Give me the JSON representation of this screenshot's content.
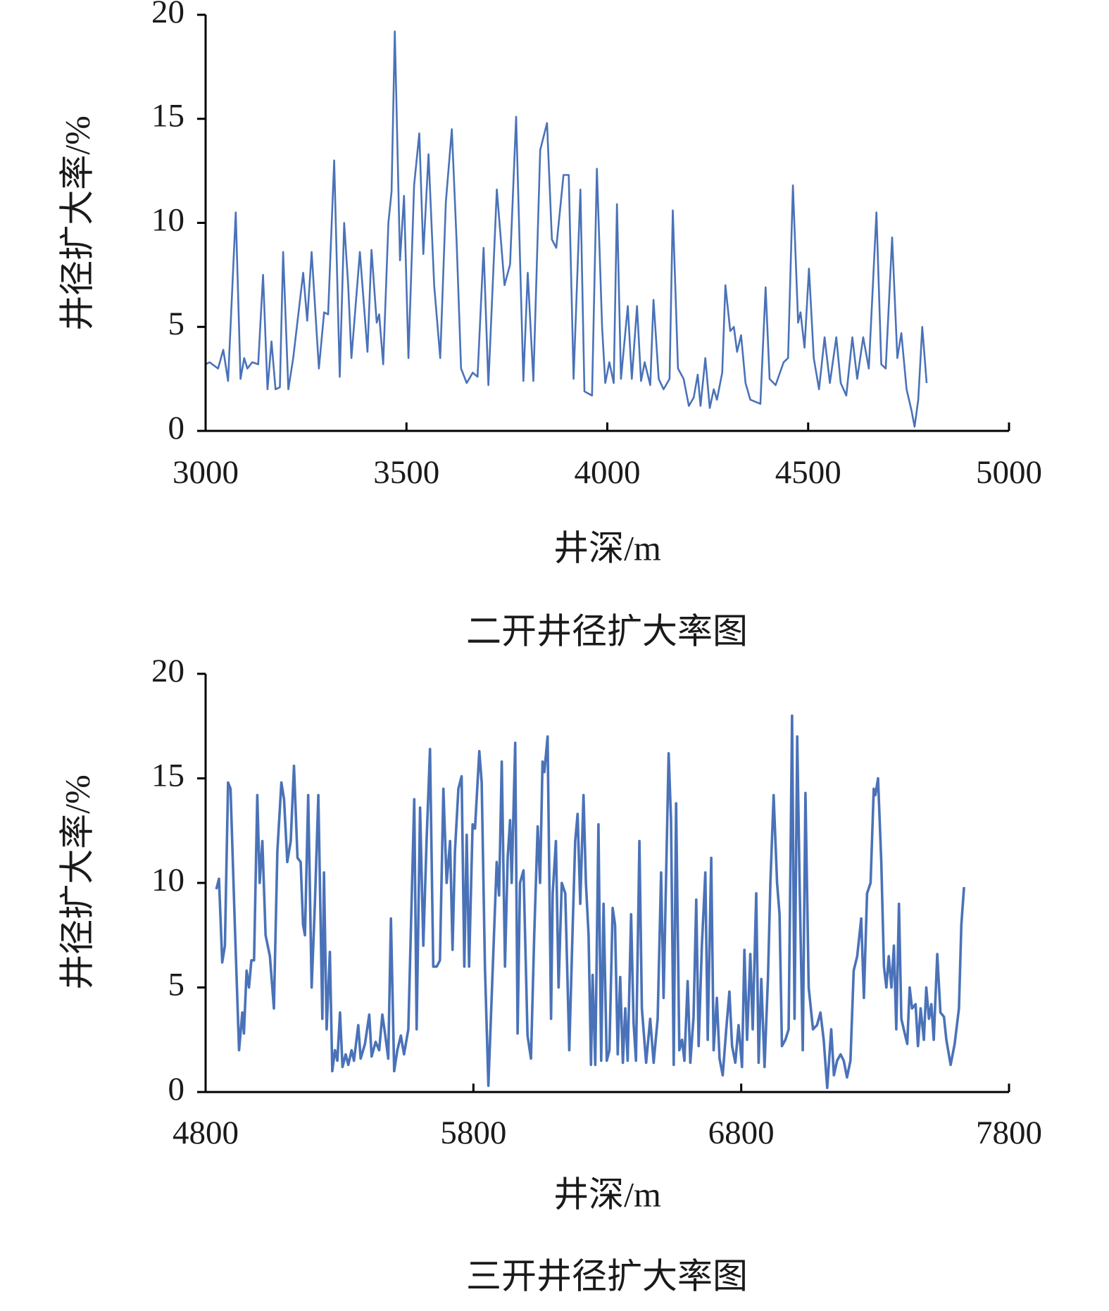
{
  "chart_data": [
    {
      "type": "line",
      "title": "二开井径扩大率图",
      "x_label": "井深/m",
      "y_label": "井径扩大率/%",
      "color": "#4a72b8",
      "xlim": [
        3000,
        5000
      ],
      "xticks": [
        3000,
        3500,
        4000,
        4500,
        5000
      ],
      "ylim": [
        0,
        20
      ],
      "yticks": [
        0,
        5,
        10,
        15,
        20
      ],
      "x": [
        3000,
        3010,
        3031,
        3044,
        3056,
        3075,
        3087,
        3096,
        3104,
        3116,
        3131,
        3143,
        3154,
        3164,
        3174,
        3185,
        3193,
        3206,
        3218,
        3243,
        3253,
        3264,
        3282,
        3295,
        3305,
        3320,
        3334,
        3345,
        3355,
        3363,
        3384,
        3403,
        3413,
        3426,
        3432,
        3442,
        3455,
        3463,
        3471,
        3484,
        3494,
        3505,
        3519,
        3532,
        3542,
        3555,
        3569,
        3584,
        3598,
        3613,
        3625,
        3636,
        3650,
        3665,
        3677,
        3692,
        3704,
        3725,
        3744,
        3758,
        3773,
        3791,
        3802,
        3816,
        3833,
        3850,
        3862,
        3873,
        3891,
        3904,
        3916,
        3933,
        3943,
        3962,
        3974,
        3987,
        3995,
        4005,
        4016,
        4024,
        4034,
        4051,
        4061,
        4074,
        4084,
        4093,
        4107,
        4115,
        4128,
        4140,
        4155,
        4163,
        4176,
        4190,
        4203,
        4215,
        4225,
        4232,
        4244,
        4255,
        4265,
        4273,
        4286,
        4294,
        4306,
        4315,
        4323,
        4333,
        4344,
        4356,
        4381,
        4394,
        4404,
        4419,
        4439,
        4450,
        4462,
        4475,
        4481,
        4491,
        4502,
        4514,
        4527,
        4541,
        4554,
        4570,
        4581,
        4595,
        4610,
        4622,
        4637,
        4651,
        4670,
        4682,
        4693,
        4709,
        4722,
        4732,
        4745,
        4757,
        4765,
        4774,
        4784,
        4795
      ],
      "values": [
        3.2,
        3.3,
        3.0,
        3.9,
        2.4,
        10.5,
        2.5,
        3.5,
        3.0,
        3.3,
        3.2,
        7.5,
        2.0,
        4.3,
        2.0,
        2.1,
        8.6,
        2.0,
        3.5,
        7.6,
        5.3,
        8.6,
        3.0,
        5.7,
        5.6,
        13.0,
        2.6,
        10.0,
        7.0,
        3.5,
        8.6,
        3.8,
        8.7,
        5.2,
        5.6,
        3.2,
        10.0,
        11.5,
        19.2,
        8.2,
        11.3,
        3.5,
        11.8,
        14.3,
        8.5,
        13.3,
        7.0,
        3.5,
        11.0,
        14.5,
        9.0,
        3.0,
        2.3,
        2.8,
        2.6,
        8.8,
        2.2,
        11.6,
        7.0,
        8.0,
        15.1,
        2.4,
        7.6,
        2.4,
        13.5,
        14.8,
        9.2,
        8.8,
        12.3,
        12.3,
        2.5,
        11.6,
        1.9,
        1.7,
        12.6,
        5.0,
        2.3,
        3.3,
        2.3,
        10.9,
        2.5,
        6.0,
        2.5,
        6.0,
        2.4,
        3.3,
        2.2,
        6.3,
        2.5,
        2.0,
        2.5,
        10.6,
        3.0,
        2.5,
        1.2,
        1.6,
        2.7,
        1.2,
        3.5,
        1.1,
        2.0,
        1.5,
        2.8,
        7.0,
        4.8,
        5.0,
        3.8,
        4.6,
        2.3,
        1.5,
        1.3,
        6.9,
        2.5,
        2.2,
        3.3,
        3.5,
        11.8,
        5.2,
        5.7,
        4.0,
        7.8,
        3.5,
        2.0,
        4.5,
        2.3,
        4.5,
        2.3,
        1.7,
        4.5,
        2.5,
        4.5,
        3.0,
        10.5,
        3.2,
        3.0,
        9.3,
        3.5,
        4.7,
        2.0,
        1.0,
        0.2,
        1.5,
        5.0,
        2.3
      ]
    },
    {
      "type": "line",
      "title": "三开井径扩大率图",
      "x_label": "井深/m",
      "y_label": "井径扩大率/%",
      "color": "#4a72b8",
      "xlim": [
        4800,
        7800
      ],
      "xticks": [
        4800,
        5800,
        6800,
        7800
      ],
      "ylim": [
        0,
        20
      ],
      "yticks": [
        0,
        5,
        10,
        15,
        20
      ],
      "x": [
        4840,
        4850,
        4862,
        4872,
        4884,
        4893,
        4909,
        4925,
        4937,
        4943,
        4953,
        4962,
        4971,
        4981,
        4993,
        5002,
        5012,
        5024,
        5040,
        5055,
        5068,
        5083,
        5093,
        5105,
        5118,
        5130,
        5143,
        5155,
        5164,
        5171,
        5183,
        5196,
        5208,
        5221,
        5236,
        5242,
        5252,
        5264,
        5273,
        5283,
        5292,
        5302,
        5311,
        5323,
        5333,
        5345,
        5354,
        5370,
        5379,
        5395,
        5411,
        5420,
        5435,
        5448,
        5460,
        5470,
        5482,
        5492,
        5504,
        5516,
        5529,
        5541,
        5557,
        5579,
        5588,
        5601,
        5613,
        5625,
        5638,
        5650,
        5663,
        5675,
        5688,
        5700,
        5713,
        5722,
        5731,
        5744,
        5756,
        5766,
        5775,
        5784,
        5797,
        5806,
        5822,
        5831,
        5843,
        5856,
        5887,
        5896,
        5906,
        5918,
        5928,
        5937,
        5943,
        5956,
        5965,
        5974,
        5987,
        6002,
        6015,
        6027,
        6040,
        6049,
        6058,
        6065,
        6077,
        6090,
        6096,
        6108,
        6118,
        6130,
        6143,
        6158,
        6171,
        6180,
        6189,
        6199,
        6211,
        6220,
        6230,
        6239,
        6245,
        6255,
        6267,
        6277,
        6286,
        6298,
        6308,
        6320,
        6329,
        6339,
        6348,
        6358,
        6367,
        6376,
        6389,
        6398,
        6407,
        6420,
        6429,
        6445,
        6460,
        6473,
        6488,
        6501,
        6510,
        6519,
        6529,
        6538,
        6548,
        6557,
        6569,
        6579,
        6588,
        6600,
        6610,
        6622,
        6632,
        6641,
        6653,
        6666,
        6675,
        6688,
        6697,
        6709,
        6719,
        6731,
        6744,
        6756,
        6766,
        6778,
        6790,
        6803,
        6812,
        6822,
        6834,
        6843,
        6856,
        6865,
        6875,
        6887,
        6900,
        6909,
        6921,
        6934,
        6943,
        6952,
        6965,
        6977,
        6990,
        6999,
        7009,
        7018,
        7030,
        7040,
        7052,
        7068,
        7083,
        7096,
        7108,
        7121,
        7136,
        7146,
        7158,
        7171,
        7183,
        7195,
        7208,
        7220,
        7233,
        7248,
        7258,
        7270,
        7283,
        7295,
        7301,
        7311,
        7323,
        7333,
        7342,
        7351,
        7361,
        7370,
        7379,
        7389,
        7398,
        7407,
        7420,
        7429,
        7438,
        7451,
        7460,
        7470,
        7482,
        7491,
        7501,
        7510,
        7519,
        7532,
        7544,
        7557,
        7566,
        7582,
        7597,
        7613,
        7622,
        7632
      ],
      "values": [
        9.7,
        10.2,
        6.2,
        7.0,
        14.8,
        14.5,
        8.0,
        2.0,
        3.8,
        2.8,
        5.8,
        5.0,
        6.3,
        6.3,
        14.2,
        10.0,
        12.0,
        7.5,
        6.5,
        4.0,
        11.5,
        14.8,
        14.0,
        11.0,
        12.0,
        15.6,
        11.2,
        11.0,
        8.0,
        7.5,
        14.2,
        5.0,
        9.0,
        14.2,
        3.5,
        10.5,
        3.0,
        6.7,
        1.0,
        2.0,
        1.5,
        3.8,
        1.2,
        1.8,
        1.3,
        2.0,
        1.5,
        3.2,
        1.6,
        2.3,
        3.7,
        1.7,
        2.4,
        2.0,
        3.7,
        2.8,
        1.6,
        8.3,
        1.0,
        2.0,
        2.7,
        1.8,
        3.0,
        14.0,
        3.0,
        13.6,
        7.0,
        12.0,
        16.4,
        6.0,
        6.0,
        6.3,
        14.5,
        10.0,
        12.0,
        6.8,
        11.5,
        14.5,
        15.1,
        6.0,
        12.3,
        6.0,
        12.8,
        12.6,
        16.3,
        14.8,
        6.0,
        0.3,
        11.0,
        9.4,
        15.8,
        6.0,
        11.2,
        13.0,
        10.0,
        16.7,
        2.8,
        10.0,
        10.6,
        2.7,
        1.6,
        7.5,
        12.7,
        10.0,
        15.8,
        15.3,
        17.0,
        3.5,
        9.5,
        12.0,
        5.0,
        10.0,
        9.5,
        2.0,
        8.0,
        12.0,
        13.3,
        9.0,
        14.2,
        10.0,
        7.5,
        1.3,
        5.6,
        1.3,
        12.8,
        1.5,
        9.0,
        1.5,
        2.0,
        8.8,
        8.0,
        1.8,
        5.5,
        1.4,
        4.0,
        1.5,
        8.5,
        3.3,
        1.5,
        12.0,
        4.0,
        1.4,
        3.5,
        1.4,
        3.5,
        10.5,
        4.5,
        10.0,
        16.2,
        13.0,
        1.3,
        13.8,
        2.0,
        2.5,
        1.5,
        5.3,
        1.4,
        3.6,
        9.2,
        2.2,
        7.0,
        10.5,
        2.5,
        11.2,
        2.0,
        4.5,
        1.6,
        0.8,
        3.0,
        4.8,
        2.2,
        1.4,
        3.2,
        1.2,
        6.8,
        2.5,
        6.6,
        3.0,
        9.5,
        1.4,
        5.4,
        1.2,
        5.5,
        10.0,
        14.2,
        10.0,
        8.5,
        2.2,
        2.5,
        3.0,
        18.0,
        3.5,
        17.0,
        10.0,
        2.0,
        14.3,
        5.0,
        3.0,
        3.2,
        3.8,
        2.5,
        0.2,
        3.0,
        0.8,
        1.5,
        1.8,
        1.5,
        0.7,
        1.5,
        5.8,
        6.5,
        8.3,
        4.5,
        9.5,
        10.0,
        14.5,
        14.2,
        15.0,
        11.0,
        6.0,
        5.0,
        6.5,
        5.0,
        7.0,
        3.0,
        9.0,
        3.5,
        3.0,
        2.3,
        5.0,
        4.0,
        4.2,
        2.2,
        4.0,
        2.5,
        5.0,
        3.5,
        4.2,
        2.5,
        6.6,
        3.8,
        3.6,
        2.5,
        1.3,
        2.3,
        4.0,
        8.0,
        9.8
      ]
    }
  ]
}
